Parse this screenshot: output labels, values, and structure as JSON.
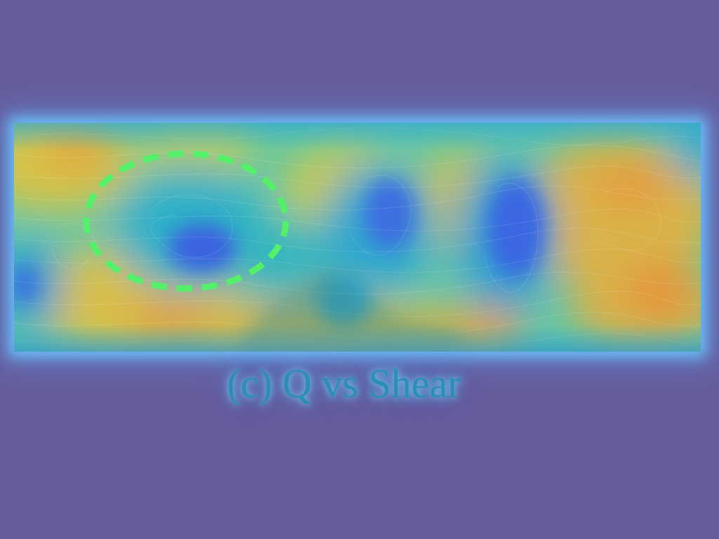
{
  "caption": "(c) Q vs Shear",
  "colors": {
    "background": "#665c9c",
    "glow": "#6ec8ff",
    "field_low": "#3a6fe0",
    "field_mid": "#2fc6b2",
    "field_high": "#e9a52f",
    "highlight_ellipse": "#55f06a"
  }
}
